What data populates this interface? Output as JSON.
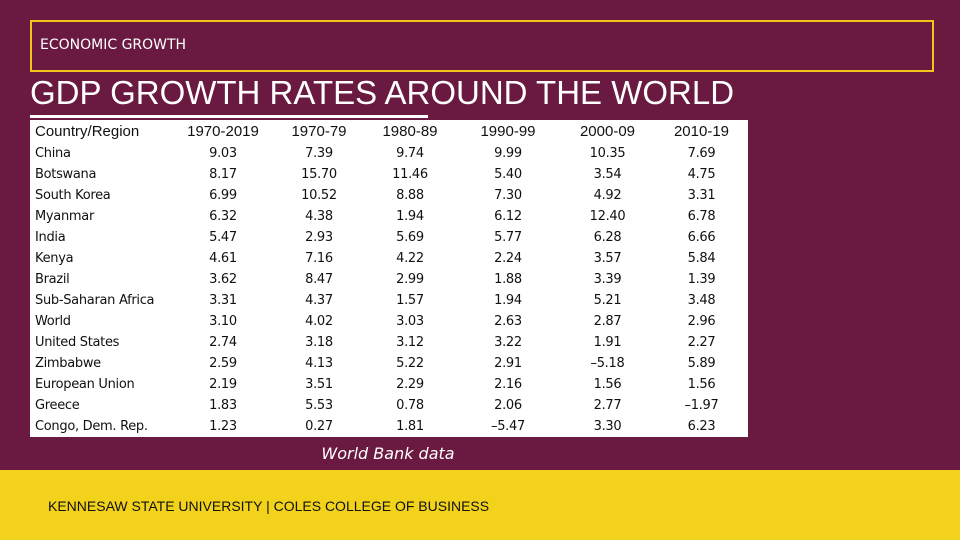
{
  "header": {
    "label": "ECONOMIC GROWTH",
    "title": "GDP GROWTH RATES AROUND THE WORLD"
  },
  "table": {
    "columns": [
      "Country/Region",
      "1970-2019",
      "1970-79",
      "1980-89",
      "1990-99",
      "2000-09",
      "2010-19"
    ],
    "rows": [
      [
        "China",
        "9.03",
        "7.39",
        "9.74",
        "9.99",
        "10.35",
        "7.69"
      ],
      [
        "Botswana",
        "8.17",
        "15.70",
        "11.46",
        "5.40",
        "3.54",
        "4.75"
      ],
      [
        "South Korea",
        "6.99",
        "10.52",
        "8.88",
        "7.30",
        "4.92",
        "3.31"
      ],
      [
        "Myanmar",
        "6.32",
        "4.38",
        "1.94",
        "6.12",
        "12.40",
        "6.78"
      ],
      [
        "India",
        "5.47",
        "2.93",
        "5.69",
        "5.77",
        "6.28",
        "6.66"
      ],
      [
        "Kenya",
        "4.61",
        "7.16",
        "4.22",
        "2.24",
        "3.57",
        "5.84"
      ],
      [
        "Brazil",
        "3.62",
        "8.47",
        "2.99",
        "1.88",
        "3.39",
        "1.39"
      ],
      [
        "Sub-Saharan Africa",
        "3.31",
        "4.37",
        "1.57",
        "1.94",
        "5.21",
        "3.48"
      ],
      [
        "World",
        "3.10",
        "4.02",
        "3.03",
        "2.63",
        "2.87",
        "2.96"
      ],
      [
        "United States",
        "2.74",
        "3.18",
        "3.12",
        "3.22",
        "1.91",
        "2.27"
      ],
      [
        "Zimbabwe",
        "2.59",
        "4.13",
        "5.22",
        "2.91",
        "–5.18",
        "5.89"
      ],
      [
        "European Union",
        "2.19",
        "3.51",
        "2.29",
        "2.16",
        "1.56",
        "1.56"
      ],
      [
        "Greece",
        "1.83",
        "5.53",
        "0.78",
        "2.06",
        "2.77",
        "–1.97"
      ],
      [
        "Congo, Dem. Rep.",
        "1.23",
        "0.27",
        "1.81",
        "–5.47",
        "3.30",
        "6.23"
      ]
    ]
  },
  "source": "World Bank data",
  "footer": "KENNESAW STATE UNIVERSITY | COLES COLLEGE OF BUSINESS"
}
